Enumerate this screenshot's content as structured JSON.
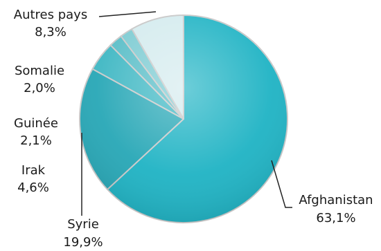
{
  "chart_data": {
    "type": "pie",
    "title": "",
    "start_angle_deg": 0,
    "direction": "clockwise",
    "slices": [
      {
        "name": "Afghanistan",
        "value": 63.1,
        "label": "63,1%",
        "color": "#1fb3c4"
      },
      {
        "name": "Syrie",
        "value": 19.9,
        "label": "19,9%",
        "color": "#27a7b6"
      },
      {
        "name": "Irak",
        "value": 4.6,
        "label": "4,6%",
        "color": "#3eb7c3"
      },
      {
        "name": "Guinée",
        "value": 2.1,
        "label": "2,1%",
        "color": "#58bdc7"
      },
      {
        "name": "Somalie",
        "value": 2.0,
        "label": "2,0%",
        "color": "#7ccbd2"
      },
      {
        "name": "Autres pays",
        "value": 8.3,
        "label": "8,3%",
        "color": "#d4ebee"
      }
    ]
  }
}
